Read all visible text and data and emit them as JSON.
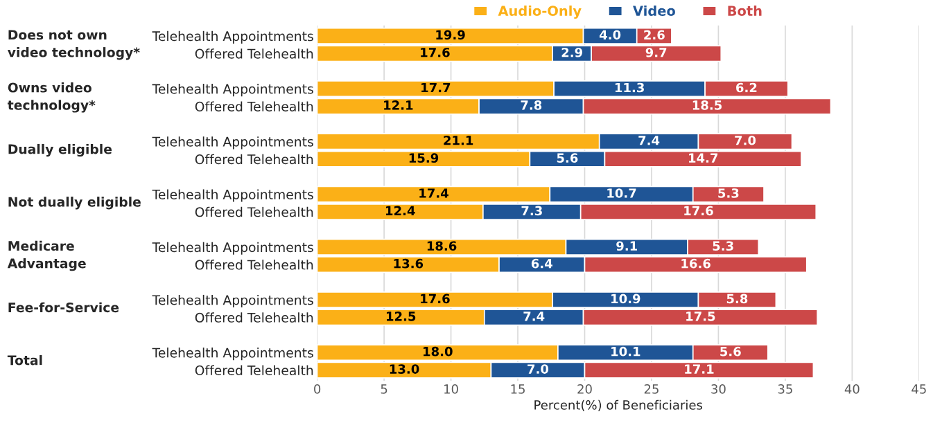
{
  "chart_data": {
    "type": "bar",
    "orientation": "horizontal",
    "stacked": true,
    "xlabel": "Percent(%) of Beneficiaries",
    "categories": [
      "Telehealth Appointments",
      "Offered Telehealth",
      "Telehealth Appointments",
      "Offered Telehealth",
      "Telehealth Appointments",
      "Offered Telehealth",
      "Telehealth Appointments",
      "Offered Telehealth",
      "Telehealth Appointments",
      "Offered Telehealth",
      "Telehealth Appointments",
      "Offered Telehealth",
      "Telehealth Appointments",
      "Offered Telehealth"
    ],
    "annotations": [
      "Does not own video technology*",
      "Owns video technology*",
      "Dually eligible",
      "Not dually eligible",
      "Medicare Advantage",
      "Fee-for-Service",
      "Total"
    ],
    "series": [
      {
        "name": "Audio-Only",
        "color": "#fbb017",
        "values": [
          19.9,
          17.6,
          17.7,
          12.1,
          21.1,
          15.9,
          17.4,
          12.4,
          18.6,
          13.6,
          17.6,
          12.5,
          18.0,
          13.0
        ],
        "value_labels": [
          "19.9",
          "17.6",
          "17.7",
          "12.1",
          "21.1",
          "15.9",
          "17.4",
          "12.4",
          "18.6",
          "13.6",
          "17.6",
          "12.5",
          "18.0",
          "13.0"
        ]
      },
      {
        "name": "Video",
        "color": "#1f5596",
        "values": [
          4.0,
          2.9,
          11.3,
          7.8,
          7.4,
          5.6,
          10.7,
          7.3,
          9.1,
          6.4,
          10.9,
          7.4,
          10.1,
          7.0
        ],
        "value_labels": [
          "4.0",
          "2.9",
          "11.3",
          "7.8",
          "7.4",
          "5.6",
          "10.7",
          "7.3",
          "9.1",
          "6.4",
          "10.9",
          "7.4",
          "10.1",
          "7.0"
        ]
      },
      {
        "name": "Both",
        "color": "#cc4848",
        "values": [
          2.6,
          9.7,
          6.2,
          18.5,
          7.0,
          14.7,
          5.3,
          17.6,
          5.3,
          16.6,
          5.8,
          17.5,
          5.6,
          17.1
        ],
        "value_labels": [
          "2.6",
          "9.7",
          "6.2",
          "18.5",
          "7.0",
          "14.7",
          "5.3",
          "17.6",
          "5.3",
          "16.6",
          "5.8",
          "17.5",
          "5.6",
          "17.1"
        ]
      }
    ],
    "xlim": [
      0,
      45
    ],
    "xticks": [
      0,
      5,
      10,
      15,
      20,
      25,
      30,
      35,
      40,
      45
    ],
    "grid": "x",
    "legend": "top"
  }
}
